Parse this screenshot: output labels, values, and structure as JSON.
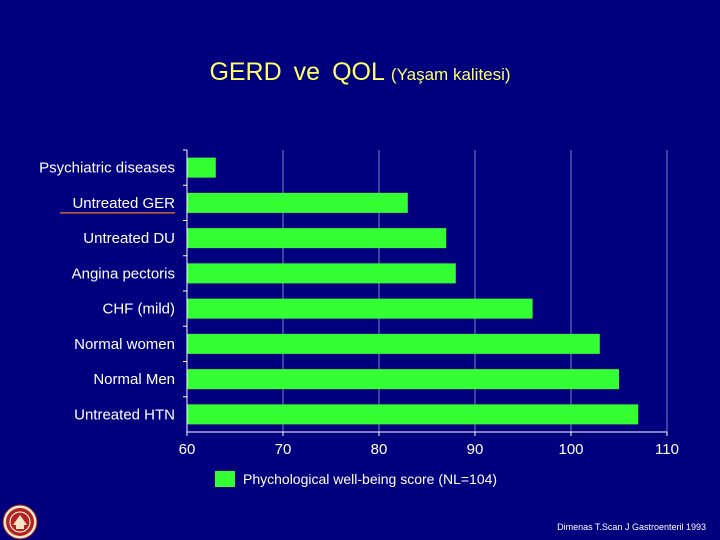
{
  "title": {
    "part1": "GERD",
    "part2": "ve",
    "part3": "QOL",
    "sub": "(Yaşam kalitesi)"
  },
  "legend": {
    "label": "Phychological well-being score (NL=104)",
    "color": "#33ff33"
  },
  "citation": "Dimenas T.Scan J Gastroenteril 1993",
  "logo": {
    "icon": "university-seal-icon"
  },
  "colors": {
    "background": "#00007f",
    "title": "#ffff66",
    "bar": "#33ff33",
    "text": "#ffffff",
    "gridline": "#7f7fbf",
    "underline": "#cc6633"
  },
  "chart_data": {
    "type": "bar",
    "orientation": "horizontal",
    "categories": [
      "Psychiatric diseases",
      "Untreated GER",
      "Untreated DU",
      "Angina pectoris",
      "CHF (mild)",
      "Normal women",
      "Normal Men",
      "Untreated HTN"
    ],
    "values": [
      63,
      83,
      87,
      88,
      96,
      103,
      105,
      107
    ],
    "xlim": [
      60,
      110
    ],
    "xticks": [
      "60",
      "70",
      "80",
      "90",
      "100",
      "110"
    ],
    "highlighted_category": "Untreated GER",
    "legend": "Phychological well-being score (NL=104)",
    "grid": "vertical"
  }
}
